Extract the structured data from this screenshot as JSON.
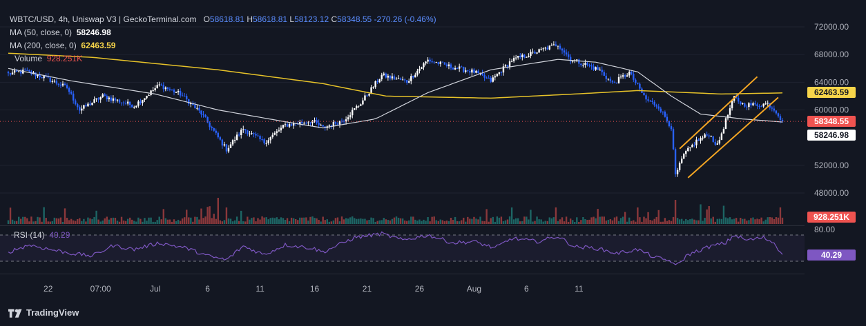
{
  "header": {
    "symbol": "WBTC/USD, 4h, Uniswap V3 | GeckoTerminal.com",
    "o_label": "O",
    "o_value": "58618.81",
    "h_label": "H",
    "h_value": "58618.81",
    "l_label": "L",
    "l_value": "58123.12",
    "c_label": "C",
    "c_value": "58348.55",
    "change": "-270.26 (-0.46%)"
  },
  "indicators": {
    "ma50_label": "MA (50, close, 0)",
    "ma50_value": "58246.98",
    "ma200_label": "MA (200, close, 0)",
    "ma200_value": "62463.59",
    "volume_label": "Volume",
    "volume_value": "928.251K",
    "rsi_label": "RSI (14)",
    "rsi_value": "40.29"
  },
  "badges": {
    "ma200": "62463.59",
    "price": "58348.55",
    "ma50": "58246.98",
    "volume": "928.251K",
    "rsi": "40.29",
    "rsi_upper": "80.00"
  },
  "footer": {
    "brand": "TradingView"
  },
  "colors": {
    "background": "#131722",
    "up": "#ffffff",
    "down": "#2962ff",
    "ma50": "#d1d4dc",
    "ma200": "#e6c229",
    "channel": "#f5a623",
    "rsi": "#7e57c2",
    "price_line": "#ef5350",
    "volume_up": "#26a69a",
    "volume_down": "#ef5350"
  },
  "chart_data": {
    "type": "candlestick",
    "x_ticks": [
      "22",
      "07:00",
      "Jul",
      "6",
      "11",
      "16",
      "21",
      "26",
      "Aug",
      "6",
      "11"
    ],
    "y_ticks": [
      "72000.00",
      "68000.00",
      "64000.00",
      "60000.00",
      "52000.00",
      "48000.00"
    ],
    "ylim": [
      45500,
      74000
    ],
    "last_price": 58348.55,
    "price_anchors": [
      {
        "t": 0,
        "v": 65200
      },
      {
        "t": 8,
        "v": 65600
      },
      {
        "t": 18,
        "v": 64600
      },
      {
        "t": 28,
        "v": 63200
      },
      {
        "t": 34,
        "v": 60000
      },
      {
        "t": 45,
        "v": 62000
      },
      {
        "t": 60,
        "v": 60600
      },
      {
        "t": 72,
        "v": 63600
      },
      {
        "t": 82,
        "v": 62300
      },
      {
        "t": 92,
        "v": 59500
      },
      {
        "t": 100,
        "v": 56000
      },
      {
        "t": 104,
        "v": 54300
      },
      {
        "t": 112,
        "v": 57300
      },
      {
        "t": 122,
        "v": 55300
      },
      {
        "t": 132,
        "v": 57800
      },
      {
        "t": 145,
        "v": 58400
      },
      {
        "t": 150,
        "v": 57400
      },
      {
        "t": 160,
        "v": 58600
      },
      {
        "t": 168,
        "v": 61000
      },
      {
        "t": 178,
        "v": 65000
      },
      {
        "t": 190,
        "v": 64100
      },
      {
        "t": 200,
        "v": 67200
      },
      {
        "t": 210,
        "v": 66300
      },
      {
        "t": 222,
        "v": 65500
      },
      {
        "t": 230,
        "v": 64200
      },
      {
        "t": 240,
        "v": 67200
      },
      {
        "t": 250,
        "v": 68200
      },
      {
        "t": 262,
        "v": 69500
      },
      {
        "t": 268,
        "v": 67300
      },
      {
        "t": 276,
        "v": 66500
      },
      {
        "t": 282,
        "v": 65700
      },
      {
        "t": 288,
        "v": 63800
      },
      {
        "t": 296,
        "v": 65400
      },
      {
        "t": 304,
        "v": 61500
      },
      {
        "t": 310,
        "v": 60500
      },
      {
        "t": 316,
        "v": 57500
      },
      {
        "t": 318,
        "v": 50500
      },
      {
        "t": 322,
        "v": 53500
      },
      {
        "t": 328,
        "v": 55500
      },
      {
        "t": 334,
        "v": 56500
      },
      {
        "t": 338,
        "v": 54800
      },
      {
        "t": 342,
        "v": 58500
      },
      {
        "t": 346,
        "v": 61800
      },
      {
        "t": 350,
        "v": 60800
      },
      {
        "t": 356,
        "v": 60700
      },
      {
        "t": 362,
        "v": 60900
      },
      {
        "t": 366,
        "v": 59800
      },
      {
        "t": 369,
        "v": 58350
      }
    ],
    "ma50_anchors": [
      {
        "t": 0,
        "v": 66000
      },
      {
        "t": 30,
        "v": 64200
      },
      {
        "t": 70,
        "v": 62300
      },
      {
        "t": 100,
        "v": 60000
      },
      {
        "t": 130,
        "v": 58400
      },
      {
        "t": 150,
        "v": 57400
      },
      {
        "t": 175,
        "v": 58700
      },
      {
        "t": 200,
        "v": 62500
      },
      {
        "t": 230,
        "v": 65800
      },
      {
        "t": 262,
        "v": 67300
      },
      {
        "t": 280,
        "v": 66900
      },
      {
        "t": 300,
        "v": 65500
      },
      {
        "t": 316,
        "v": 62000
      },
      {
        "t": 330,
        "v": 59400
      },
      {
        "t": 350,
        "v": 58700
      },
      {
        "t": 369,
        "v": 58250
      }
    ],
    "ma200_anchors": [
      {
        "t": 0,
        "v": 68200
      },
      {
        "t": 40,
        "v": 67600
      },
      {
        "t": 100,
        "v": 65800
      },
      {
        "t": 150,
        "v": 63800
      },
      {
        "t": 180,
        "v": 62000
      },
      {
        "t": 230,
        "v": 61700
      },
      {
        "t": 270,
        "v": 62300
      },
      {
        "t": 300,
        "v": 62800
      },
      {
        "t": 340,
        "v": 62300
      },
      {
        "t": 369,
        "v": 62460
      }
    ],
    "channel": [
      {
        "name": "upper",
        "t1": 320,
        "v1": 54400,
        "t2": 357,
        "v2": 64800
      },
      {
        "name": "lower",
        "t1": 324,
        "v1": 50200,
        "t2": 367,
        "v2": 61800
      }
    ],
    "volume_last": 928251,
    "rsi": {
      "upper_band": 70,
      "lower_band": 30,
      "last": 40.29,
      "anchors": [
        {
          "t": 0,
          "v": 44
        },
        {
          "t": 10,
          "v": 55
        },
        {
          "t": 20,
          "v": 48
        },
        {
          "t": 30,
          "v": 42
        },
        {
          "t": 40,
          "v": 38
        },
        {
          "t": 50,
          "v": 54
        },
        {
          "t": 60,
          "v": 48
        },
        {
          "t": 72,
          "v": 58
        },
        {
          "t": 85,
          "v": 50
        },
        {
          "t": 95,
          "v": 38
        },
        {
          "t": 104,
          "v": 32
        },
        {
          "t": 112,
          "v": 53
        },
        {
          "t": 122,
          "v": 40
        },
        {
          "t": 132,
          "v": 55
        },
        {
          "t": 145,
          "v": 50
        },
        {
          "t": 150,
          "v": 44
        },
        {
          "t": 165,
          "v": 66
        },
        {
          "t": 178,
          "v": 72
        },
        {
          "t": 188,
          "v": 62
        },
        {
          "t": 200,
          "v": 70
        },
        {
          "t": 212,
          "v": 58
        },
        {
          "t": 222,
          "v": 60
        },
        {
          "t": 232,
          "v": 50
        },
        {
          "t": 240,
          "v": 65
        },
        {
          "t": 252,
          "v": 60
        },
        {
          "t": 262,
          "v": 68
        },
        {
          "t": 270,
          "v": 52
        },
        {
          "t": 280,
          "v": 50
        },
        {
          "t": 290,
          "v": 42
        },
        {
          "t": 300,
          "v": 48
        },
        {
          "t": 308,
          "v": 36
        },
        {
          "t": 316,
          "v": 30
        },
        {
          "t": 318,
          "v": 22
        },
        {
          "t": 324,
          "v": 40
        },
        {
          "t": 334,
          "v": 52
        },
        {
          "t": 342,
          "v": 58
        },
        {
          "t": 346,
          "v": 70
        },
        {
          "t": 352,
          "v": 62
        },
        {
          "t": 360,
          "v": 66
        },
        {
          "t": 365,
          "v": 58
        },
        {
          "t": 369,
          "v": 40.29
        }
      ]
    }
  }
}
